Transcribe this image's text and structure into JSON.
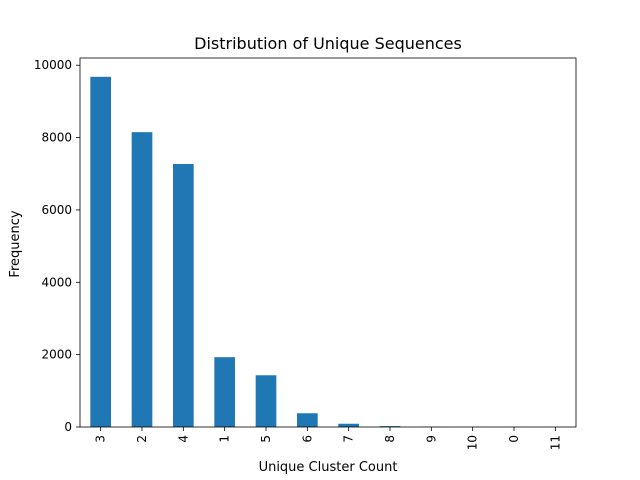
{
  "chart_data": {
    "type": "bar",
    "title": "Distribution of Unique Sequences",
    "xlabel": "Unique Cluster Count",
    "ylabel": "Frequency",
    "categories": [
      "3",
      "2",
      "4",
      "1",
      "5",
      "6",
      "7",
      "8",
      "9",
      "10",
      "0",
      "11"
    ],
    "values": [
      9680,
      8150,
      7270,
      1930,
      1430,
      380,
      90,
      25,
      6,
      3,
      2,
      1
    ],
    "ylim": [
      0,
      10200
    ],
    "yticks": [
      0,
      2000,
      4000,
      6000,
      8000,
      10000
    ],
    "ytick_labels": [
      "0",
      "2000",
      "4000",
      "6000",
      "8000",
      "10000"
    ],
    "xtick_rotation": "vertical",
    "grid": false,
    "legend": "none",
    "bar_color": "#1f77b4"
  }
}
